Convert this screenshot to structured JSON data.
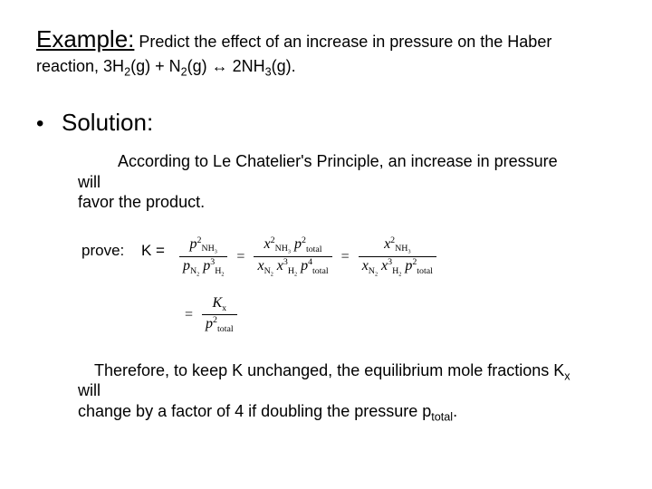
{
  "title": {
    "example_word": "Example:",
    "example_rest": " Predict the effect of an increase in pressure on the Haber"
  },
  "reaction": {
    "prefix": "reaction, 3H",
    "sub1": "2",
    "g1": "(g)  +  N",
    "sub2": "2",
    "g2": "(g)   ↔  2NH",
    "sub3": "3",
    "g3": "(g)."
  },
  "bullet": {
    "dot": "•",
    "solution": "Solution:"
  },
  "principle": {
    "text1": "According to Le Chatelier's Principle, an increase in pressure will",
    "text2": "favor the product."
  },
  "prove": {
    "label": "prove:",
    "K": "K ="
  },
  "eq": {
    "f1_num_a": "p",
    "f1_num_sub": "NH",
    "f1_num_sub2": "3",
    "f1_num_sup": "2",
    "f1_den_a": "p",
    "f1_den_sub1": "N",
    "f1_den_sub1b": "2",
    "f1_den_b": "p",
    "f1_den_sub2": "H",
    "f1_den_sub2b": "2",
    "f1_den_sup": "3",
    "eq": "=",
    "f2_num_xa": "x",
    "f2_num_xsub": "NH",
    "f2_num_xsub2": "3",
    "f2_num_xsup": "2",
    "f2_num_pb": "p",
    "f2_num_psub": "total",
    "f2_num_psup": "2",
    "f2_den_xa": "x",
    "f2_den_xsub1": "N",
    "f2_den_xsub1b": "2",
    "f2_den_xb": "x",
    "f2_den_xsub2": "H",
    "f2_den_xsub2b": "2",
    "f2_den_xsup": "3",
    "f2_den_pb": "p",
    "f2_den_psub": "total",
    "f2_den_psup": "4",
    "f3_num_xa": "x",
    "f3_num_xsub": "NH",
    "f3_num_xsub2": "3",
    "f3_num_xsup": "2",
    "f3_den_xa": "x",
    "f3_den_xsub1": "N",
    "f3_den_xsub1b": "2",
    "f3_den_xb": "x",
    "f3_den_xsub2": "H",
    "f3_den_xsub2b": "2",
    "f3_den_xsup": "3",
    "f3_den_pb": "p",
    "f3_den_psub": "total",
    "f3_den_psup": "2",
    "f4_num": "K",
    "f4_num_sub": "x",
    "f4_den_a": "p",
    "f4_den_sub": "total",
    "f4_den_sup": "2"
  },
  "therefore": {
    "line1a": "Therefore, to keep K unchanged, the equilibrium mole fractions K",
    "line1sub": "x",
    "line1b": " will",
    "line2a": "change by a factor of 4 if doubling the pressure p",
    "line2sub": "total",
    "line2b": "."
  }
}
